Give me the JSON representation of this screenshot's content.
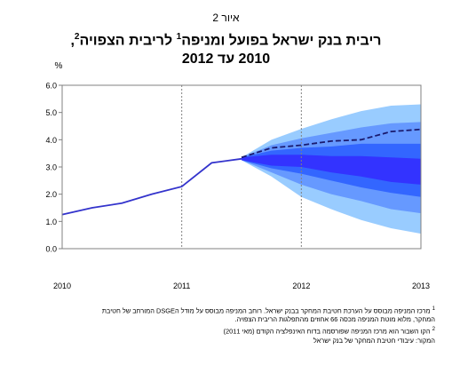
{
  "figure_label": "איור 2",
  "title": {
    "line1_text": "ריבית בנק ישראל בפועל ומניפה",
    "line1_sup1": "1",
    "line1_text2": " לריבית הצפויה",
    "line1_sup2": "2",
    "line1_end": ",",
    "line2": "2010 עד 2012"
  },
  "footnotes": {
    "note1_marker": "1",
    "note1_line1": "מרכז המניפה מבוסס על הערכת חטיבת המחקר בבנק ישראל. רוחב המניפה מבוסס על מודל הDSGE המורחב של חטיבת",
    "note1_line2": "המחקר, מלוא מוטת המניפה מכסה 66 אחוזים מהתפלגות הריבית הצפויה.",
    "note2_marker": "2",
    "note2_line": "הקו השבור הוא מרכז המניפה שפורסמה בדוח האינפלציה הקודם (מאי 2011)",
    "source": "המקור: עיבודי חטיבת המחקר של בנק ישראל"
  },
  "colors": {
    "actual_line": "#3333cc",
    "previous_forecast_line": "#1a1a6e",
    "fan_outer": "#99ccff",
    "fan_second": "#6699ff",
    "fan_third": "#3366ff",
    "fan_core": "#3333ff",
    "grid": "#808080"
  },
  "chart_data": {
    "type": "area",
    "title": "ריבית בנק ישראל בפועל ומניפה לריבית הצפויה, 2010 עד 2012",
    "ylabel": "%",
    "xlabel": "",
    "ylim": [
      0,
      6
    ],
    "y_ticks": [
      "0.0",
      "1.0",
      "2.0",
      "3.0",
      "4.0",
      "5.0",
      "6.0"
    ],
    "xlim": [
      2010,
      2013
    ],
    "x_ticks": [
      {
        "value": 2010,
        "label": "2010"
      },
      {
        "value": 2011,
        "label": "2011"
      },
      {
        "value": 2012,
        "label": "2012"
      },
      {
        "value": 2013,
        "label": "2013"
      }
    ],
    "x_gridlines": [
      2011,
      2012
    ],
    "grid": "vertical dashed",
    "legend": "none",
    "series": [
      {
        "role": "actual",
        "x": [
          2010.0,
          2010.25,
          2010.5,
          2010.75,
          2011.0,
          2011.25,
          2011.5
        ],
        "values": [
          1.25,
          1.5,
          1.67,
          2.0,
          2.28,
          3.15,
          3.3
        ]
      },
      {
        "role": "previous_forecast",
        "x": [
          2011.5,
          2011.75,
          2012.0,
          2012.25,
          2012.5,
          2012.75,
          2013.0
        ],
        "values": [
          3.35,
          3.7,
          3.8,
          3.95,
          4.0,
          4.3,
          4.38
        ]
      }
    ],
    "fan": {
      "x": [
        2011.5,
        2011.75,
        2012.0,
        2012.25,
        2012.5,
        2012.75,
        2013.0
      ],
      "bands": [
        {
          "lower": [
            3.25,
            2.65,
            1.9,
            1.45,
            1.05,
            0.75,
            0.55
          ],
          "upper": [
            3.35,
            4.0,
            4.4,
            4.75,
            5.05,
            5.25,
            5.3
          ]
        },
        {
          "lower": [
            3.25,
            2.8,
            2.35,
            2.0,
            1.75,
            1.45,
            1.3
          ],
          "upper": [
            3.35,
            3.8,
            4.05,
            4.25,
            4.45,
            4.6,
            4.65
          ]
        },
        {
          "lower": [
            3.25,
            2.95,
            2.75,
            2.5,
            2.25,
            2.05,
            1.9
          ],
          "upper": [
            3.35,
            3.6,
            3.7,
            3.75,
            3.85,
            3.85,
            3.85
          ]
        },
        {
          "lower": [
            3.25,
            3.05,
            3.0,
            2.8,
            2.65,
            2.45,
            2.35
          ],
          "upper": [
            3.35,
            3.45,
            3.45,
            3.4,
            3.4,
            3.35,
            3.3
          ]
        }
      ]
    }
  }
}
